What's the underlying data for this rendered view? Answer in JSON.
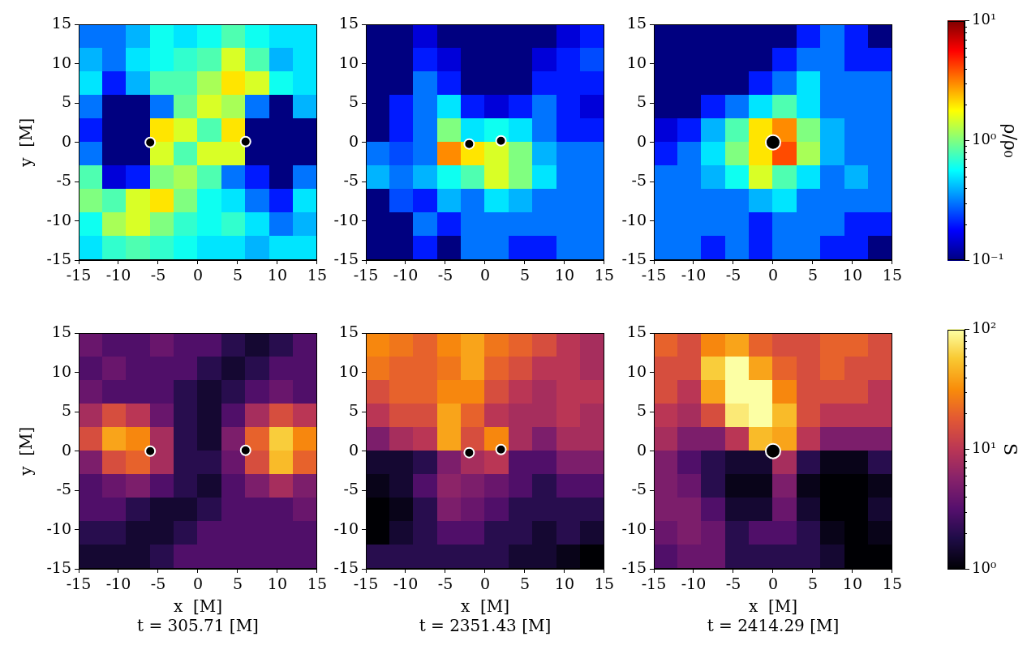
{
  "chart_data": [
    {
      "type": "heatmap",
      "colorbar": {
        "ylim": [
          0.1,
          10
        ],
        "log": "y",
        "ylabel": "ρ/ρ₀",
        "yticks": [
          {
            "value": 0.1,
            "label": "10⁻¹"
          },
          {
            "value": 1,
            "label": "10⁰"
          },
          {
            "value": 10,
            "label": "10¹"
          }
        ]
      },
      "panels": [
        {
          "ylabel": "y  [M]",
          "xlim": [
            -15,
            15
          ],
          "ylim": [
            -15,
            15
          ],
          "xticks": [
            -15,
            -10,
            -5,
            0,
            5,
            10,
            15
          ],
          "yticks": [
            -15,
            -10,
            -5,
            0,
            5,
            10,
            15
          ],
          "black_holes": [
            {
              "x": -6,
              "y": 0
            },
            {
              "x": 6,
              "y": 0.1
            }
          ],
          "cells": [
            [
              0.3,
              0.3,
              0.4,
              0.6,
              0.5,
              0.6,
              0.8,
              0.6,
              0.5,
              0.5
            ],
            [
              0.4,
              0.3,
              0.5,
              0.6,
              0.7,
              0.8,
              1.5,
              0.8,
              0.4,
              0.5
            ],
            [
              0.5,
              0.2,
              0.4,
              0.8,
              0.8,
              1.2,
              2,
              1.5,
              0.6,
              0.5
            ],
            [
              0.3,
              0.1,
              0.1,
              0.3,
              0.9,
              1.5,
              1.2,
              0.3,
              0.1,
              0.4
            ],
            [
              0.2,
              0.1,
              0.1,
              2,
              1.5,
              0.8,
              2,
              0.1,
              0.1,
              0.1
            ],
            [
              0.3,
              0.1,
              0.1,
              1.5,
              0.8,
              1.5,
              1.5,
              0.1,
              0.1,
              0.1
            ],
            [
              0.8,
              0.15,
              0.2,
              1,
              1.2,
              0.8,
              0.3,
              0.2,
              0.1,
              0.3
            ],
            [
              1,
              0.8,
              1.5,
              2,
              1,
              0.6,
              0.5,
              0.3,
              0.2,
              0.5
            ],
            [
              0.6,
              1.2,
              1.5,
              1,
              0.7,
              0.6,
              0.7,
              0.5,
              0.3,
              0.4
            ],
            [
              0.5,
              0.7,
              0.8,
              0.7,
              0.6,
              0.5,
              0.5,
              0.4,
              0.5,
              0.5
            ]
          ]
        },
        {
          "xlim": [
            -15,
            15
          ],
          "ylim": [
            -15,
            15
          ],
          "xticks": [
            -15,
            -10,
            -5,
            0,
            5,
            10,
            15
          ],
          "yticks": [
            -15,
            -10,
            -5,
            0,
            5,
            10,
            15
          ],
          "black_holes": [
            {
              "x": -2,
              "y": -0.2
            },
            {
              "x": 2,
              "y": 0.2
            }
          ],
          "cells": [
            [
              0.1,
              0.1,
              0.15,
              0.1,
              0.1,
              0.1,
              0.1,
              0.1,
              0.15,
              0.2
            ],
            [
              0.1,
              0.1,
              0.2,
              0.15,
              0.1,
              0.1,
              0.1,
              0.15,
              0.2,
              0.25
            ],
            [
              0.1,
              0.1,
              0.3,
              0.2,
              0.1,
              0.1,
              0.1,
              0.2,
              0.2,
              0.2
            ],
            [
              0.1,
              0.2,
              0.3,
              0.5,
              0.2,
              0.15,
              0.2,
              0.3,
              0.2,
              0.15
            ],
            [
              0.1,
              0.2,
              0.3,
              1,
              0.5,
              0.6,
              0.5,
              0.3,
              0.2,
              0.2
            ],
            [
              0.3,
              0.25,
              0.3,
              3,
              2,
              1.5,
              1,
              0.4,
              0.3,
              0.3
            ],
            [
              0.4,
              0.3,
              0.4,
              0.6,
              0.8,
              1.5,
              1,
              0.5,
              0.3,
              0.3
            ],
            [
              0.1,
              0.25,
              0.2,
              0.4,
              0.3,
              0.5,
              0.4,
              0.3,
              0.3,
              0.3
            ],
            [
              0.1,
              0.1,
              0.3,
              0.2,
              0.3,
              0.3,
              0.3,
              0.3,
              0.3,
              0.3
            ],
            [
              0.1,
              0.1,
              0.2,
              0.1,
              0.3,
              0.3,
              0.2,
              0.2,
              0.3,
              0.3
            ]
          ]
        },
        {
          "xlim": [
            -15,
            15
          ],
          "ylim": [
            -15,
            15
          ],
          "xticks": [
            -15,
            -10,
            -5,
            0,
            5,
            10,
            15
          ],
          "yticks": [
            -15,
            -10,
            -5,
            0,
            5,
            10,
            15
          ],
          "black_holes": [
            {
              "x": 0,
              "y": 0
            }
          ],
          "cells": [
            [
              0.1,
              0.1,
              0.1,
              0.1,
              0.1,
              0.1,
              0.2,
              0.3,
              0.2,
              0.1
            ],
            [
              0.1,
              0.1,
              0.1,
              0.1,
              0.1,
              0.2,
              0.3,
              0.3,
              0.2,
              0.2
            ],
            [
              0.1,
              0.1,
              0.1,
              0.1,
              0.2,
              0.3,
              0.5,
              0.3,
              0.3,
              0.3
            ],
            [
              0.1,
              0.1,
              0.2,
              0.3,
              0.5,
              0.8,
              0.5,
              0.3,
              0.3,
              0.3
            ],
            [
              0.15,
              0.2,
              0.4,
              0.8,
              2,
              3,
              1,
              0.4,
              0.3,
              0.3
            ],
            [
              0.2,
              0.3,
              0.5,
              1,
              2,
              4,
              1.2,
              0.4,
              0.3,
              0.3
            ],
            [
              0.3,
              0.3,
              0.4,
              0.6,
              1.5,
              0.8,
              0.5,
              0.3,
              0.4,
              0.3
            ],
            [
              0.3,
              0.3,
              0.3,
              0.3,
              0.4,
              0.5,
              0.3,
              0.3,
              0.3,
              0.3
            ],
            [
              0.3,
              0.3,
              0.3,
              0.3,
              0.2,
              0.3,
              0.3,
              0.3,
              0.2,
              0.2
            ],
            [
              0.3,
              0.3,
              0.2,
              0.3,
              0.2,
              0.3,
              0.3,
              0.2,
              0.2,
              0.1
            ]
          ]
        }
      ]
    },
    {
      "type": "heatmap",
      "colorbar": {
        "ylim": [
          1,
          100
        ],
        "log": "y",
        "ylabel": "S",
        "yticks": [
          {
            "value": 1,
            "label": "10⁰"
          },
          {
            "value": 10,
            "label": "10¹"
          },
          {
            "value": 100,
            "label": "10²"
          }
        ]
      },
      "panels": [
        {
          "ylabel": "y  [M]",
          "xlabel": "x  [M]",
          "annotation": "t = 305.71 [M]",
          "xlim": [
            -15,
            15
          ],
          "ylim": [
            -15,
            15
          ],
          "xticks": [
            -15,
            -10,
            -5,
            0,
            5,
            10,
            15
          ],
          "yticks": [
            -15,
            -10,
            -5,
            0,
            5,
            10,
            15
          ],
          "black_holes": [
            {
              "x": -6,
              "y": 0
            },
            {
              "x": 6,
              "y": 0.1
            }
          ],
          "cells": [
            [
              4,
              3,
              3,
              4,
              3,
              3,
              2,
              1.5,
              2,
              3
            ],
            [
              3,
              4,
              3,
              3,
              3,
              2,
              1.5,
              2,
              3,
              3
            ],
            [
              4,
              3,
              3,
              3,
              2,
              1.5,
              2,
              3,
              4,
              3
            ],
            [
              8,
              15,
              10,
              4,
              2,
              1.5,
              3,
              8,
              15,
              10
            ],
            [
              15,
              40,
              30,
              8,
              2,
              1.5,
              5,
              20,
              60,
              30
            ],
            [
              5,
              15,
              20,
              8,
              2,
              2,
              4,
              15,
              50,
              20
            ],
            [
              3,
              4,
              5,
              3,
              2,
              1.5,
              3,
              5,
              8,
              5
            ],
            [
              3,
              3,
              2,
              1.5,
              1.5,
              2,
              3,
              3,
              3,
              4
            ],
            [
              2,
              2,
              1.5,
              1.5,
              2,
              3,
              3,
              3,
              3,
              3
            ],
            [
              1.5,
              1.5,
              1.5,
              2,
              3,
              3,
              3,
              3,
              3,
              3
            ]
          ]
        },
        {
          "xlabel": "x  [M]",
          "annotation": "t = 2351.43 [M]",
          "xlim": [
            -15,
            15
          ],
          "ylim": [
            -15,
            15
          ],
          "xticks": [
            -15,
            -10,
            -5,
            0,
            5,
            10,
            15
          ],
          "yticks": [
            -15,
            -10,
            -5,
            0,
            5,
            10,
            15
          ],
          "black_holes": [
            {
              "x": -2,
              "y": -0.2
            },
            {
              "x": 2,
              "y": 0.2
            }
          ],
          "cells": [
            [
              30,
              25,
              20,
              30,
              40,
              25,
              20,
              15,
              10,
              8
            ],
            [
              25,
              20,
              20,
              25,
              40,
              20,
              15,
              10,
              10,
              8
            ],
            [
              15,
              20,
              20,
              30,
              30,
              15,
              10,
              8,
              10,
              10
            ],
            [
              10,
              15,
              15,
              40,
              20,
              10,
              8,
              8,
              10,
              8
            ],
            [
              5,
              8,
              10,
              40,
              15,
              30,
              8,
              5,
              8,
              8
            ],
            [
              1.5,
              1.5,
              2,
              5,
              8,
              10,
              3,
              3,
              5,
              5
            ],
            [
              1.2,
              1.5,
              3,
              6,
              5,
              4,
              3,
              2,
              3,
              3
            ],
            [
              1,
              1.2,
              2,
              5,
              4,
              3,
              2,
              2,
              2,
              2
            ],
            [
              1,
              1.5,
              2,
              3,
              3,
              2,
              2,
              1.5,
              2,
              1.5
            ],
            [
              2,
              2,
              2,
              2,
              2,
              2,
              1.5,
              1.5,
              1.2,
              1
            ]
          ]
        },
        {
          "xlabel": "x  [M]",
          "annotation": "t = 2414.29 [M]",
          "xlim": [
            -15,
            15
          ],
          "ylim": [
            -15,
            15
          ],
          "xticks": [
            -15,
            -10,
            -5,
            0,
            5,
            10,
            15
          ],
          "yticks": [
            -15,
            -10,
            -5,
            0,
            5,
            10,
            15
          ],
          "black_holes": [
            {
              "x": 0,
              "y": 0
            }
          ],
          "cells": [
            [
              20,
              15,
              30,
              40,
              20,
              15,
              15,
              20,
              20,
              15
            ],
            [
              15,
              15,
              60,
              100,
              40,
              20,
              15,
              20,
              15,
              15
            ],
            [
              15,
              10,
              40,
              100,
              100,
              30,
              15,
              15,
              15,
              10
            ],
            [
              10,
              8,
              15,
              80,
              100,
              50,
              15,
              10,
              10,
              10
            ],
            [
              8,
              5,
              5,
              10,
              50,
              40,
              10,
              5,
              5,
              5
            ],
            [
              5,
              3,
              2,
              1.5,
              1.5,
              8,
              2,
              1.2,
              1.2,
              2
            ],
            [
              5,
              4,
              2,
              1.2,
              1.2,
              5,
              1.2,
              1,
              1,
              1.2
            ],
            [
              5,
              5,
              3,
              1.5,
              1.5,
              4,
              1.5,
              1,
              1,
              1.5
            ],
            [
              4,
              5,
              4,
              2,
              3,
              3,
              2,
              1.2,
              1,
              1.2
            ],
            [
              3,
              4,
              4,
              2,
              2,
              2,
              2,
              1.5,
              1,
              1
            ]
          ]
        }
      ]
    }
  ]
}
